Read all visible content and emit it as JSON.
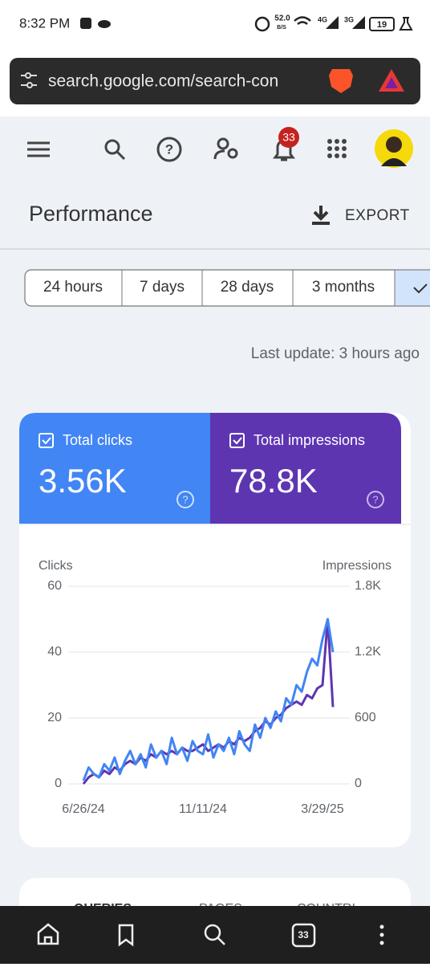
{
  "status_bar": {
    "time": "8:32 PM",
    "net_speed": "52.0",
    "net_unit": "B/S",
    "sim1": "4G",
    "sim2": "3G",
    "battery": "19"
  },
  "browser": {
    "url": "search.google.com/search-con"
  },
  "header": {
    "notifications": "33"
  },
  "page": {
    "title": "Performance",
    "export": "EXPORT",
    "ranges": [
      "24 hours",
      "7 days",
      "28 days",
      "3 months"
    ],
    "last_update": "Last update: 3 hours ago"
  },
  "metrics": [
    {
      "label": "Total clicks",
      "value": "3.56K"
    },
    {
      "label": "Total impressions",
      "value": "78.8K"
    }
  ],
  "chart_data": {
    "type": "line",
    "y_label": "Clicks",
    "y2_label": "Impressions",
    "categories": [
      "6/26/24",
      null,
      null,
      null,
      null,
      null,
      null,
      null,
      null,
      null,
      null,
      null,
      null,
      null,
      null,
      null,
      null,
      null,
      null,
      null,
      null,
      null,
      null,
      "11/11/24",
      null,
      null,
      null,
      null,
      null,
      null,
      null,
      null,
      null,
      null,
      null,
      null,
      null,
      null,
      null,
      null,
      null,
      null,
      null,
      null,
      null,
      null,
      "3/29/25",
      null,
      null
    ],
    "series": [
      {
        "color": "#4285f4",
        "values": [
          1,
          5,
          3,
          2,
          6,
          4,
          8,
          3,
          7,
          10,
          6,
          9,
          5,
          12,
          8,
          10,
          6,
          14,
          9,
          11,
          7,
          13,
          10,
          9,
          15,
          8,
          12,
          10,
          14,
          9,
          16,
          12,
          10,
          18,
          14,
          20,
          17,
          22,
          19,
          26,
          24,
          30,
          28,
          34,
          38,
          36,
          44,
          50,
          40
        ]
      },
      {
        "color": "#5e35b1",
        "axis": "y2",
        "values": [
          0,
          60,
          90,
          60,
          120,
          90,
          150,
          120,
          180,
          210,
          180,
          240,
          210,
          270,
          240,
          300,
          270,
          300,
          270,
          330,
          300,
          300,
          330,
          360,
          300,
          330,
          360,
          330,
          390,
          360,
          420,
          390,
          420,
          480,
          510,
          570,
          540,
          600,
          630,
          690,
          720,
          750,
          720,
          810,
          780,
          870,
          900,
          1500,
          700
        ]
      }
    ],
    "ylim": [
      0,
      60
    ],
    "yticks": [
      0,
      20,
      40,
      60
    ],
    "y2lim": [
      0,
      1800
    ],
    "y2ticks": [
      0,
      600,
      {
        "value": 1200,
        "label": "1.2K"
      },
      {
        "value": 1800,
        "label": "1.8K"
      }
    ],
    "grid": true
  },
  "tabs": [
    "QUERIES",
    "PAGES",
    "COUNTRI"
  ],
  "bottom_nav": {
    "tabs": "33"
  }
}
